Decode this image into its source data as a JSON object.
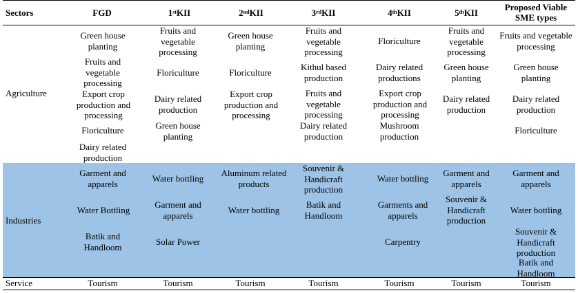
{
  "headers": {
    "sectors": "Sectors",
    "fgd": "FGD",
    "kii1_num": "1",
    "kii1_sup": "st",
    "kii1_rest": " KII",
    "kii2_num": "2",
    "kii2_sup": "nd",
    "kii2_rest": " KII",
    "kii3_num": "3",
    "kii3_sup": "rd",
    "kii3_rest": " KII",
    "kii4_num": "4",
    "kii4_sup": "th",
    "kii4_rest": " KII",
    "kii5_num": "5",
    "kii5_sup": "th",
    "kii5_rest": " KII",
    "proposed_l1": "Proposed Viable",
    "proposed_l2": "SME types"
  },
  "rows": {
    "agriculture": {
      "sector": "Agriculture",
      "fgd": [
        "Green house planting",
        "Fruits and vegetable processing",
        "Export crop production and processing",
        "Floriculture",
        "Dairy related production"
      ],
      "kii1": [
        "Fruits and vegetable processing",
        "Floriculture",
        "Dairy related production",
        "Green house planting"
      ],
      "kii2": [
        "Green house planting",
        "Floriculture",
        "Export crop production and processing"
      ],
      "kii3": [
        "Fruits and vegetable processing",
        "Kithul based production",
        "Fruits and vegetable processing",
        "Dairy related production"
      ],
      "kii4": [
        "Floriculture",
        "Dairy related productions",
        "Export crop production and processing",
        "Mushroom production"
      ],
      "kii5": [
        "Fruits and vegetable processing",
        "Green house planting",
        "Dairy related production"
      ],
      "proposed": [
        "Fruits and vegetable processing",
        "Green house planting",
        "Dairy related production",
        "Floriculture"
      ]
    },
    "industries": {
      "sector": "Industries",
      "fgd": [
        "Garment and apparels",
        "Water Bottling",
        "Batik and Handloom"
      ],
      "kii1": [
        "Water bottling",
        "Garment and apparels",
        "Solar Power"
      ],
      "kii2": [
        "Aluminum related products",
        "Water bottling"
      ],
      "kii3": [
        "Souvenir & Handicraft production",
        "Batik and Handloom"
      ],
      "kii4": [
        "Water bottling",
        "Garments and apparels",
        "Carpentry"
      ],
      "kii5": [
        "Garment and apparels",
        "Souvenir & Handicraft production"
      ],
      "proposed": [
        "Garment and apparels",
        "Water bottling",
        "Souvenir & Handicraft production",
        "Batik and Handloom"
      ]
    },
    "service": {
      "sector": "Service",
      "fgd": [
        "Tourism"
      ],
      "kii1": [
        "Tourism"
      ],
      "kii2": [
        "Tourism"
      ],
      "kii3": [
        "Tourism"
      ],
      "kii4": [
        "Tourism"
      ],
      "kii5": [
        "Tourism"
      ],
      "proposed": [
        "Tourism"
      ]
    }
  },
  "colors": {
    "industries_band": "#9dc3e6",
    "rule": "#000000"
  }
}
